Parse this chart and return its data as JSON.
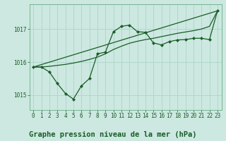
{
  "title": "Graphe pression niveau de la mer (hPa)",
  "background_color": "#cce8e0",
  "grid_color": "#b0d8cc",
  "line_color": "#1a5c28",
  "ylim": [
    1014.55,
    1017.75
  ],
  "xlim": [
    -0.5,
    23.5
  ],
  "yticks": [
    1015,
    1016,
    1017
  ],
  "xticks": [
    0,
    1,
    2,
    3,
    4,
    5,
    6,
    7,
    8,
    9,
    10,
    11,
    12,
    13,
    14,
    15,
    16,
    17,
    18,
    19,
    20,
    21,
    22,
    23
  ],
  "line1_x": [
    0,
    1,
    2,
    3,
    4,
    5,
    6,
    7,
    8,
    9,
    10,
    11,
    12,
    13,
    14,
    15,
    16,
    17,
    18,
    19,
    20,
    21,
    22,
    23
  ],
  "line1_y": [
    1015.85,
    1015.85,
    1015.7,
    1015.35,
    1015.05,
    1014.88,
    1015.28,
    1015.5,
    1016.25,
    1016.3,
    1016.92,
    1017.08,
    1017.12,
    1016.92,
    1016.9,
    1016.58,
    1016.52,
    1016.62,
    1016.67,
    1016.68,
    1016.72,
    1016.72,
    1016.68,
    1017.55
  ],
  "line2_x": [
    0,
    1,
    2,
    3,
    4,
    5,
    6,
    7,
    8,
    9,
    10,
    11,
    12,
    13,
    14,
    15,
    16,
    17,
    18,
    19,
    20,
    21,
    22,
    23
  ],
  "line2_y": [
    1015.85,
    1015.85,
    1015.87,
    1015.9,
    1015.93,
    1015.97,
    1016.02,
    1016.08,
    1016.15,
    1016.25,
    1016.38,
    1016.48,
    1016.57,
    1016.63,
    1016.68,
    1016.72,
    1016.77,
    1016.82,
    1016.87,
    1016.91,
    1016.95,
    1017.0,
    1017.08,
    1017.55
  ],
  "line3_x": [
    0,
    23
  ],
  "line3_y": [
    1015.85,
    1017.55
  ],
  "marker": "D",
  "markersize": 2.2,
  "linewidth": 0.9,
  "title_fontsize": 7.5,
  "tick_fontsize": 5.5
}
